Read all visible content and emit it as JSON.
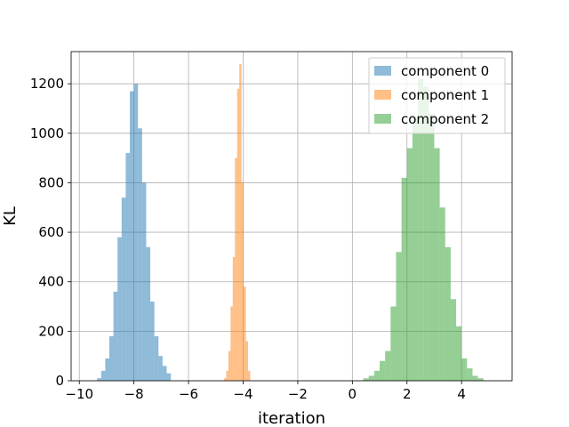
{
  "chart_data": {
    "type": "histogram",
    "title": "",
    "xlabel": "iteration",
    "ylabel": "KL",
    "xlim": [
      -10.3,
      5.85
    ],
    "ylim": [
      0,
      1330
    ],
    "xticks": [
      -10,
      -8,
      -6,
      -4,
      -2,
      0,
      2,
      4
    ],
    "xtick_labels": [
      "−10",
      "−8",
      "−6",
      "−4",
      "−2",
      "0",
      "2",
      "4"
    ],
    "yticks": [
      0,
      200,
      400,
      600,
      800,
      1000,
      1200
    ],
    "ytick_labels": [
      "0",
      "200",
      "400",
      "600",
      "800",
      "1000",
      "1200"
    ],
    "grid": true,
    "legend_position": "top-right",
    "series": [
      {
        "name": "component 0",
        "color": "#1f77b4",
        "opacity": 0.5,
        "bins": [
          {
            "x0": -9.35,
            "x1": -9.2,
            "count": 10
          },
          {
            "x0": -9.2,
            "x1": -9.05,
            "count": 40
          },
          {
            "x0": -9.05,
            "x1": -8.9,
            "count": 90
          },
          {
            "x0": -8.9,
            "x1": -8.75,
            "count": 180
          },
          {
            "x0": -8.75,
            "x1": -8.6,
            "count": 360
          },
          {
            "x0": -8.6,
            "x1": -8.45,
            "count": 580
          },
          {
            "x0": -8.45,
            "x1": -8.3,
            "count": 740
          },
          {
            "x0": -8.3,
            "x1": -8.15,
            "count": 920
          },
          {
            "x0": -8.15,
            "x1": -8.0,
            "count": 1170
          },
          {
            "x0": -8.0,
            "x1": -7.85,
            "count": 1200
          },
          {
            "x0": -7.85,
            "x1": -7.7,
            "count": 1020
          },
          {
            "x0": -7.7,
            "x1": -7.55,
            "count": 800
          },
          {
            "x0": -7.55,
            "x1": -7.4,
            "count": 540
          },
          {
            "x0": -7.4,
            "x1": -7.25,
            "count": 320
          },
          {
            "x0": -7.25,
            "x1": -7.1,
            "count": 180
          },
          {
            "x0": -7.1,
            "x1": -6.95,
            "count": 100
          },
          {
            "x0": -6.95,
            "x1": -6.8,
            "count": 60
          },
          {
            "x0": -6.8,
            "x1": -6.65,
            "count": 30
          }
        ]
      },
      {
        "name": "component 1",
        "color": "#ff7f0e",
        "opacity": 0.5,
        "bins": [
          {
            "x0": -4.7,
            "x1": -4.62,
            "count": 10
          },
          {
            "x0": -4.62,
            "x1": -4.54,
            "count": 40
          },
          {
            "x0": -4.54,
            "x1": -4.46,
            "count": 120
          },
          {
            "x0": -4.46,
            "x1": -4.38,
            "count": 300
          },
          {
            "x0": -4.38,
            "x1": -4.3,
            "count": 500
          },
          {
            "x0": -4.3,
            "x1": -4.22,
            "count": 900
          },
          {
            "x0": -4.22,
            "x1": -4.14,
            "count": 1180
          },
          {
            "x0": -4.14,
            "x1": -4.06,
            "count": 1280
          },
          {
            "x0": -4.06,
            "x1": -3.98,
            "count": 800
          },
          {
            "x0": -3.98,
            "x1": -3.9,
            "count": 380
          },
          {
            "x0": -3.9,
            "x1": -3.82,
            "count": 160
          },
          {
            "x0": -3.82,
            "x1": -3.74,
            "count": 40
          }
        ]
      },
      {
        "name": "component 2",
        "color": "#2ca02c",
        "opacity": 0.5,
        "bins": [
          {
            "x0": 0.4,
            "x1": 0.6,
            "count": 10
          },
          {
            "x0": 0.6,
            "x1": 0.8,
            "count": 20
          },
          {
            "x0": 0.8,
            "x1": 1.0,
            "count": 40
          },
          {
            "x0": 1.0,
            "x1": 1.2,
            "count": 80
          },
          {
            "x0": 1.2,
            "x1": 1.4,
            "count": 120
          },
          {
            "x0": 1.4,
            "x1": 1.6,
            "count": 300
          },
          {
            "x0": 1.6,
            "x1": 1.8,
            "count": 520
          },
          {
            "x0": 1.8,
            "x1": 2.0,
            "count": 820
          },
          {
            "x0": 2.0,
            "x1": 2.2,
            "count": 940
          },
          {
            "x0": 2.2,
            "x1": 2.4,
            "count": 1060
          },
          {
            "x0": 2.4,
            "x1": 2.6,
            "count": 1220
          },
          {
            "x0": 2.6,
            "x1": 2.8,
            "count": 1190
          },
          {
            "x0": 2.8,
            "x1": 3.0,
            "count": 1080
          },
          {
            "x0": 3.0,
            "x1": 3.2,
            "count": 940
          },
          {
            "x0": 3.2,
            "x1": 3.4,
            "count": 700
          },
          {
            "x0": 3.4,
            "x1": 3.6,
            "count": 540
          },
          {
            "x0": 3.6,
            "x1": 3.8,
            "count": 330
          },
          {
            "x0": 3.8,
            "x1": 4.0,
            "count": 220
          },
          {
            "x0": 4.0,
            "x1": 4.2,
            "count": 90
          },
          {
            "x0": 4.2,
            "x1": 4.4,
            "count": 50
          },
          {
            "x0": 4.4,
            "x1": 4.6,
            "count": 20
          },
          {
            "x0": 4.6,
            "x1": 4.8,
            "count": 10
          }
        ]
      }
    ]
  }
}
